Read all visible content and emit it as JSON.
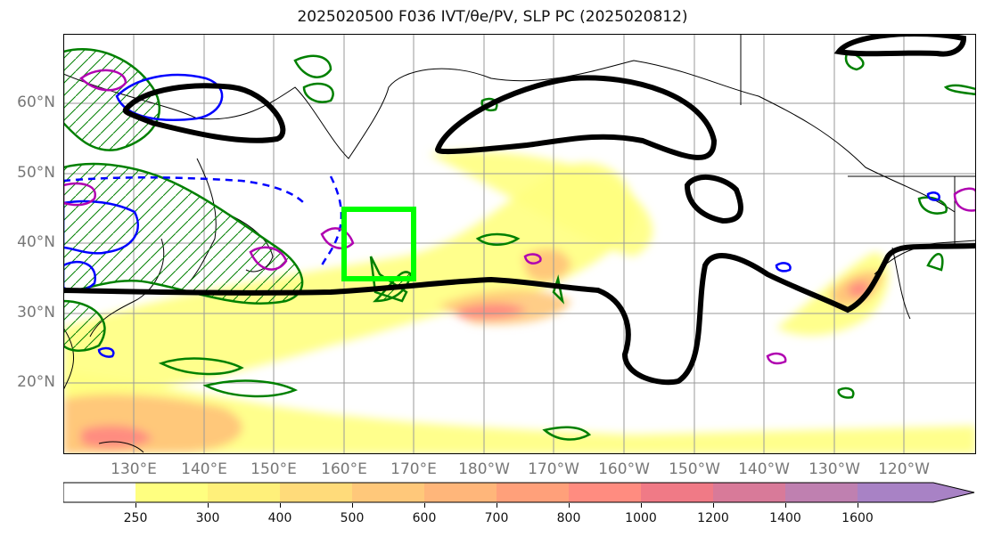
{
  "title": "2025020500 F036 IVT/θe/PV, SLP PC (2025020812)",
  "map": {
    "region": "North Pacific",
    "lat_labels": [
      "60°N",
      "50°N",
      "40°N",
      "30°N",
      "20°N"
    ],
    "lon_labels": [
      "130°E",
      "140°E",
      "150°E",
      "160°E",
      "170°E",
      "180°W",
      "170°W",
      "160°W",
      "150°W",
      "140°W",
      "130°W",
      "120°W"
    ],
    "highlight_box": {
      "lon_range": [
        "160°E",
        "170°E"
      ],
      "lat_range": [
        35,
        45
      ],
      "color": "#00ff00"
    },
    "field_colors": {
      "ivt_low": "#ffff80",
      "ivt_mid": "#ffc87a",
      "ivt_high": "#ff8c80",
      "slp_contour": "#000000",
      "pv_contour": "#0000ff",
      "theta_contour": "#b000b0",
      "hatch": "#008000"
    }
  },
  "colorbar": {
    "ticks": [
      "250",
      "300",
      "400",
      "500",
      "600",
      "700",
      "800",
      "1000",
      "1200",
      "1400",
      "1600"
    ],
    "colors": [
      "#ffffff",
      "#ffff80",
      "#fff07a",
      "#ffdb7a",
      "#ffc87a",
      "#ffb67a",
      "#ffa07a",
      "#ff8c80",
      "#f07a86",
      "#d87a99",
      "#bf80b0",
      "#a882c5",
      "#a882c5"
    ]
  }
}
